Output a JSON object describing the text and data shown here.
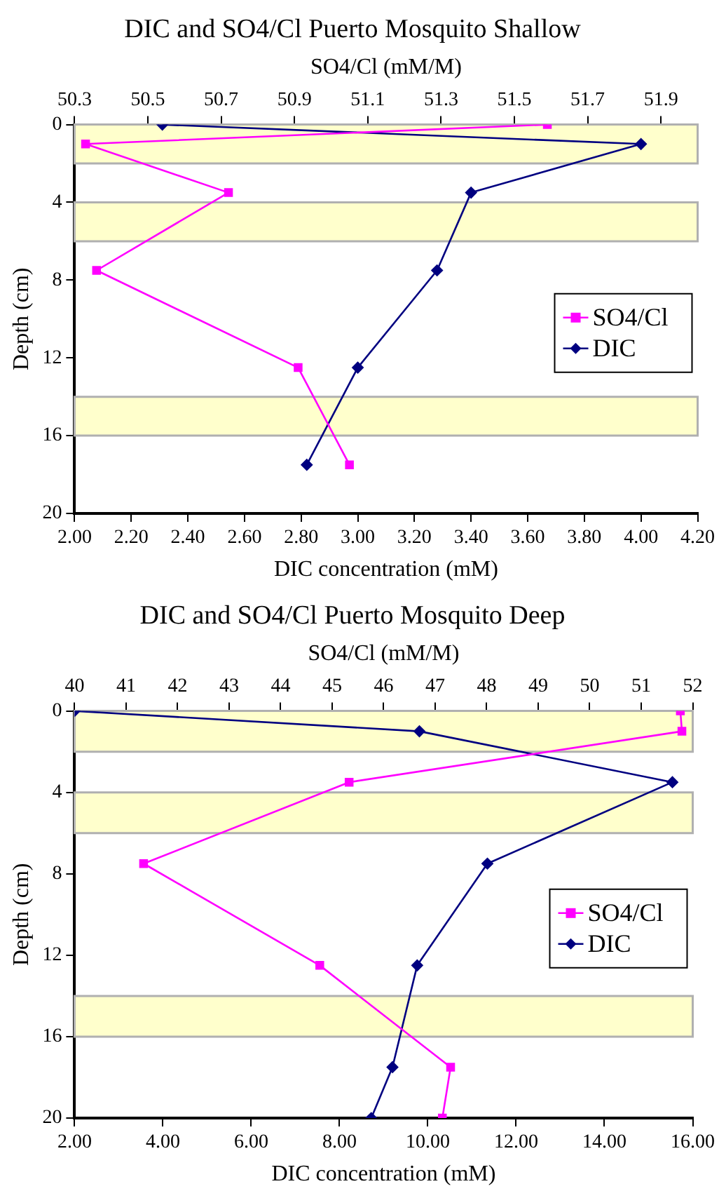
{
  "chart_data": [
    {
      "type": "line",
      "title": "DIC and SO4/Cl Puerto Mosquito Shallow",
      "x2label": "SO4/Cl (mM/M)",
      "xlabel": "DIC concentration (mM)",
      "ylabel": "Depth (cm)",
      "xlim": [
        2.0,
        4.2
      ],
      "xticks": [
        {
          "value": 2.0,
          "label": "2.00"
        },
        {
          "value": 2.2,
          "label": "2.20"
        },
        {
          "value": 2.4,
          "label": "2.40"
        },
        {
          "value": 2.6,
          "label": "2.60"
        },
        {
          "value": 2.8,
          "label": "2.80"
        },
        {
          "value": 3.0,
          "label": "3.00"
        },
        {
          "value": 3.2,
          "label": "3.20"
        },
        {
          "value": 3.4,
          "label": "3.40"
        },
        {
          "value": 3.6,
          "label": "3.60"
        },
        {
          "value": 3.8,
          "label": "3.80"
        },
        {
          "value": 4.0,
          "label": "4.00"
        },
        {
          "value": 4.2,
          "label": "4.20"
        }
      ],
      "x2lim": [
        50.3,
        52.0
      ],
      "x2ticks": [
        50.3,
        50.5,
        50.7,
        50.9,
        51.1,
        51.3,
        51.5,
        51.7,
        51.9
      ],
      "ylim": [
        20,
        0
      ],
      "yticks": [
        0,
        4,
        8,
        12,
        16,
        20
      ],
      "grid": false,
      "legend": "right",
      "bands": [
        {
          "axis": "y",
          "from": 0,
          "to": 2,
          "color": "#ffffcc"
        },
        {
          "axis": "y",
          "from": 4,
          "to": 6,
          "color": "#ffffcc"
        },
        {
          "axis": "y",
          "from": 14,
          "to": 16,
          "color": "#ffffcc"
        }
      ],
      "series": [
        {
          "name": "SO4/Cl",
          "color": "#ff00ff",
          "marker": "square",
          "axis": "x2",
          "x": [
            51.59,
            50.33,
            50.72,
            50.36,
            50.91,
            51.05
          ],
          "values": [
            0,
            1,
            3.5,
            7.5,
            12.5,
            17.5
          ]
        },
        {
          "name": "DIC",
          "color": "#000080",
          "marker": "diamond",
          "x": [
            2.31,
            4.0,
            3.4,
            3.28,
            3.0,
            2.82
          ],
          "values": [
            0,
            1,
            3.5,
            7.5,
            12.5,
            17.5
          ]
        }
      ]
    },
    {
      "type": "line",
      "title": "DIC and SO4/Cl Puerto Mosquito Deep",
      "x2label": "SO4/Cl (mM/M)",
      "xlabel": "DIC concentration (mM)",
      "ylabel": "Depth (cm)",
      "xlim": [
        2,
        16
      ],
      "xticks": [
        {
          "value": 2,
          "label": "2.00"
        },
        {
          "value": 4,
          "label": "4.00"
        },
        {
          "value": 6,
          "label": "6.00"
        },
        {
          "value": 8,
          "label": "8.00"
        },
        {
          "value": 10,
          "label": "10.00"
        },
        {
          "value": 12,
          "label": "12.00"
        },
        {
          "value": 14,
          "label": "14.00"
        },
        {
          "value": 16,
          "label": "16.00"
        }
      ],
      "x2lim": [
        40,
        52
      ],
      "x2ticks": [
        40,
        41,
        42,
        43,
        44,
        45,
        46,
        47,
        48,
        49,
        50,
        51,
        52
      ],
      "ylim": [
        20,
        0
      ],
      "yticks": [
        0,
        4,
        8,
        12,
        16,
        20
      ],
      "grid": false,
      "legend": "right",
      "bands": [
        {
          "axis": "y",
          "from": 0,
          "to": 2,
          "color": "#ffffcc"
        },
        {
          "axis": "y",
          "from": 4,
          "to": 6,
          "color": "#ffffcc"
        },
        {
          "axis": "y",
          "from": 14,
          "to": 16,
          "color": "#ffffcc"
        }
      ],
      "series": [
        {
          "name": "SO4/Cl",
          "color": "#ff00ff",
          "marker": "square",
          "axis": "x2",
          "x": [
            51.76,
            51.79,
            45.33,
            41.34,
            44.76,
            47.3,
            47.14
          ],
          "values": [
            0,
            1,
            3.5,
            7.5,
            12.5,
            17.5,
            20
          ]
        },
        {
          "name": "DIC",
          "color": "#000080",
          "marker": "diamond",
          "x": [
            2.0,
            9.81,
            15.54,
            11.35,
            9.76,
            9.2,
            8.72
          ],
          "values": [
            0,
            1,
            3.5,
            7.5,
            12.5,
            17.5,
            20
          ]
        }
      ]
    }
  ]
}
